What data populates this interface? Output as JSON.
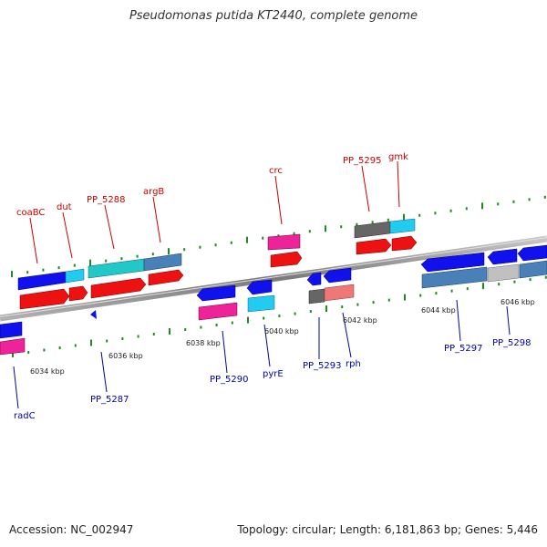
{
  "header": {
    "title": "Pseudomonas putida KT2440, complete genome"
  },
  "footer": {
    "accession": "Accession: NC_002947",
    "summary": "Topology: circular; Length: 6,181,863 bp; Genes: 5,446"
  },
  "colors": {
    "red_label": "#cc0000",
    "blue_label": "#0000aa",
    "backbone": "#8a8a8a",
    "tick": "#228822",
    "gene_blue": "#1111ee",
    "gene_red": "#ee1111",
    "gene_cyan": "#22cce8",
    "gene_teal": "#22c8c8",
    "gene_steel": "#4a80b8",
    "gene_pink": "#ee2299",
    "gene_grey": "#666666",
    "gene_lightgrey": "#c0c0c0",
    "gene_salmon": "#ee7777"
  },
  "kbp_labels": [
    "6034 kbp",
    "6036 kbp",
    "6038 kbp",
    "6040 kbp",
    "6042 kbp",
    "6044 kbp",
    "6046 kbp"
  ],
  "forward_gene_labels": [
    "coaBC",
    "dut",
    "PP_5288",
    "argB",
    "crc",
    "PP_5295",
    "gmk"
  ],
  "reverse_gene_labels": [
    "radC",
    "PP_5287",
    "PP_5290",
    "pyrE",
    "PP_5293",
    "rph",
    "PP_5297",
    "PP_5298"
  ]
}
